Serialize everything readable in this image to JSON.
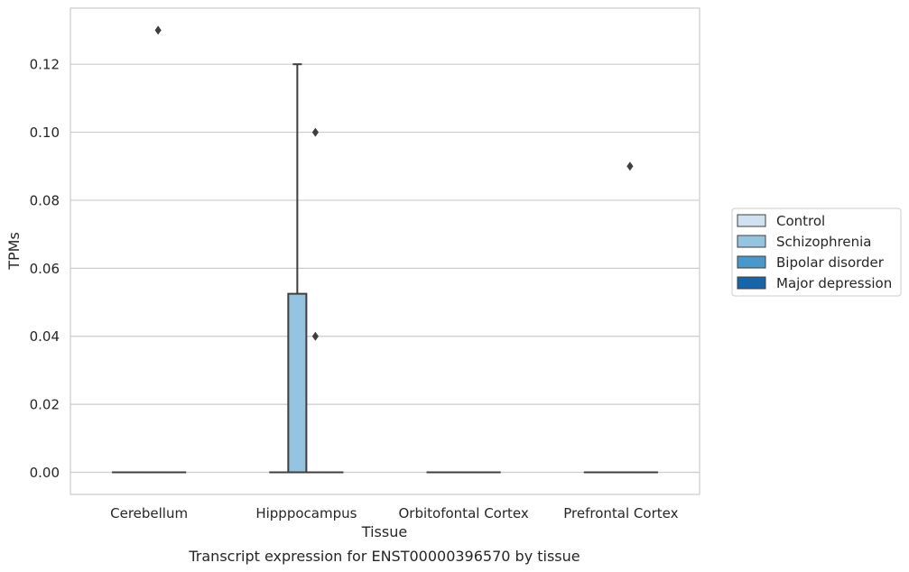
{
  "chart_data": {
    "type": "box",
    "xlabel": "Tissue",
    "ylabel": "TPMs",
    "caption": "Transcript expression for ENST00000396570 by tissue",
    "ylim": [
      -0.0065,
      0.1365
    ],
    "yticks": [
      0.0,
      0.02,
      0.04,
      0.06,
      0.08,
      0.1,
      0.12
    ],
    "ytick_labels": [
      "0.00",
      "0.02",
      "0.04",
      "0.06",
      "0.08",
      "0.10",
      "0.12"
    ],
    "categories": [
      "Cerebellum",
      "Hipppocampus",
      "Orbitofontal Cortex",
      "Prefrontal Cortex"
    ],
    "grid": "horizontal",
    "legend_position": "right",
    "series": [
      {
        "name": "Control",
        "color": "#d0e1f2",
        "boxes": [
          {
            "category": "Cerebellum",
            "q1": 0,
            "median": 0,
            "q3": 0,
            "whisker_low": 0,
            "whisker_high": 0,
            "outliers": []
          },
          {
            "category": "Hipppocampus",
            "q1": 0,
            "median": 0,
            "q3": 0,
            "whisker_low": 0,
            "whisker_high": 0,
            "outliers": []
          },
          {
            "category": "Orbitofontal Cortex",
            "q1": 0,
            "median": 0,
            "q3": 0,
            "whisker_low": 0,
            "whisker_high": 0,
            "outliers": []
          },
          {
            "category": "Prefrontal Cortex",
            "q1": 0,
            "median": 0,
            "q3": 0,
            "whisker_low": 0,
            "whisker_high": 0,
            "outliers": []
          }
        ]
      },
      {
        "name": "Schizophrenia",
        "color": "#94c4df",
        "boxes": [
          {
            "category": "Cerebellum",
            "q1": 0,
            "median": 0,
            "q3": 0,
            "whisker_low": 0,
            "whisker_high": 0,
            "outliers": []
          },
          {
            "category": "Hipppocampus",
            "q1": 0,
            "median": 0,
            "q3": 0.0525,
            "whisker_low": 0,
            "whisker_high": 0.12,
            "outliers": []
          },
          {
            "category": "Orbitofontal Cortex",
            "q1": 0,
            "median": 0,
            "q3": 0,
            "whisker_low": 0,
            "whisker_high": 0,
            "outliers": []
          },
          {
            "category": "Prefrontal Cortex",
            "q1": 0,
            "median": 0,
            "q3": 0,
            "whisker_low": 0,
            "whisker_high": 0,
            "outliers": []
          }
        ]
      },
      {
        "name": "Bipolar disorder",
        "color": "#4a98c9",
        "boxes": [
          {
            "category": "Cerebellum",
            "q1": 0,
            "median": 0,
            "q3": 0,
            "whisker_low": 0,
            "whisker_high": 0,
            "outliers": [
              0.13
            ]
          },
          {
            "category": "Hipppocampus",
            "q1": 0,
            "median": 0,
            "q3": 0,
            "whisker_low": 0,
            "whisker_high": 0,
            "outliers": [
              0.1,
              0.04
            ]
          },
          {
            "category": "Orbitofontal Cortex",
            "q1": 0,
            "median": 0,
            "q3": 0,
            "whisker_low": 0,
            "whisker_high": 0,
            "outliers": []
          },
          {
            "category": "Prefrontal Cortex",
            "q1": 0,
            "median": 0,
            "q3": 0,
            "whisker_low": 0,
            "whisker_high": 0,
            "outliers": [
              0.09
            ]
          }
        ]
      },
      {
        "name": "Major depression",
        "color": "#1764ab",
        "boxes": [
          {
            "category": "Cerebellum",
            "q1": 0,
            "median": 0,
            "q3": 0,
            "whisker_low": 0,
            "whisker_high": 0,
            "outliers": []
          },
          {
            "category": "Hipppocampus",
            "q1": 0,
            "median": 0,
            "q3": 0,
            "whisker_low": 0,
            "whisker_high": 0,
            "outliers": []
          },
          {
            "category": "Orbitofontal Cortex",
            "q1": 0,
            "median": 0,
            "q3": 0,
            "whisker_low": 0,
            "whisker_high": 0,
            "outliers": []
          },
          {
            "category": "Prefrontal Cortex",
            "q1": 0,
            "median": 0,
            "q3": 0,
            "whisker_low": 0,
            "whisker_high": 0,
            "outliers": []
          }
        ]
      }
    ]
  },
  "colors": {
    "grid": "#cccccc",
    "axis_frame": "#cccccc",
    "box_edge": "#3f3f3f",
    "text": "#262626"
  }
}
